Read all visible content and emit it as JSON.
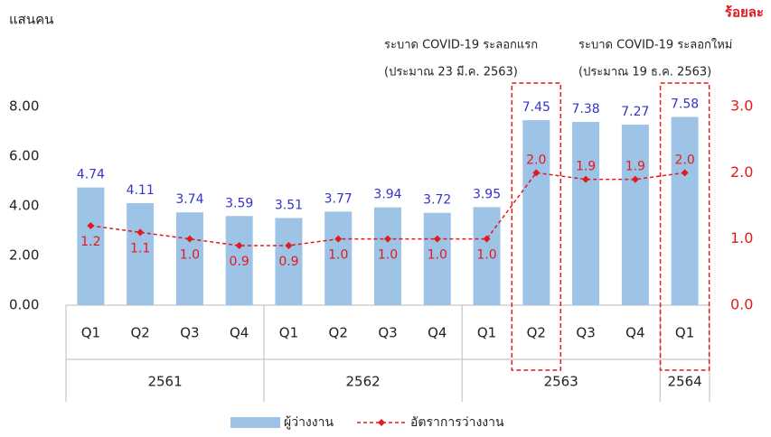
{
  "chart_data": {
    "type": "bar_line",
    "y_label": "แสนคน",
    "y2_label": "ร้อยละ",
    "annotations": [
      {
        "line1": "ระบาด COVID-19 ระลอกแรก",
        "line2": "(ประมาณ 23 มี.ค. 2563)"
      },
      {
        "line1": "ระบาด COVID-19 ระลอกใหม่",
        "line2": "(ประมาณ 19 ธ.ค. 2563)"
      }
    ],
    "categories": [
      "Q1",
      "Q2",
      "Q3",
      "Q4",
      "Q1",
      "Q2",
      "Q3",
      "Q4",
      "Q1",
      "Q2",
      "Q3",
      "Q4",
      "Q1"
    ],
    "groups": [
      {
        "label": "2561",
        "span": 4
      },
      {
        "label": "2562",
        "span": 4
      },
      {
        "label": "2563",
        "span": 4
      },
      {
        "label": "2564",
        "span": 1
      }
    ],
    "series": [
      {
        "name": "ผู้ว่างงาน",
        "color": "#9dc3e6",
        "label_color": "#3333cc",
        "values": [
          4.74,
          4.11,
          3.74,
          3.59,
          3.51,
          3.77,
          3.94,
          3.72,
          3.95,
          7.45,
          7.38,
          7.27,
          7.58
        ]
      },
      {
        "name": "อัตราการว่างงาน",
        "color": "#e31a1c",
        "axis": "y2",
        "values": [
          1.2,
          1.1,
          1.0,
          0.9,
          0.9,
          1.0,
          1.0,
          1.0,
          1.0,
          2.0,
          1.9,
          1.9,
          2.0
        ],
        "value_labels": [
          "1.2",
          "1.1",
          "1.0",
          "0.9",
          "0.9",
          "1.0",
          "1.0",
          "1.0",
          "1.0",
          "2.0",
          "1.9",
          "1.9",
          "2.0"
        ]
      }
    ],
    "ylim": [
      0,
      8
    ],
    "yticks": [
      {
        "value": 0,
        "label": "0.00"
      },
      {
        "value": 2,
        "label": "2.00"
      },
      {
        "value": 4,
        "label": "4.00"
      },
      {
        "value": 6,
        "label": "6.00"
      },
      {
        "value": 8,
        "label": "8.00"
      }
    ],
    "y2lim": [
      0,
      3
    ],
    "y2ticks": [
      {
        "value": 0,
        "label": "0.0"
      },
      {
        "value": 1,
        "label": "1.0"
      },
      {
        "value": 2,
        "label": "2.0"
      },
      {
        "value": 3,
        "label": "3.0"
      }
    ],
    "legend": "bottom"
  }
}
